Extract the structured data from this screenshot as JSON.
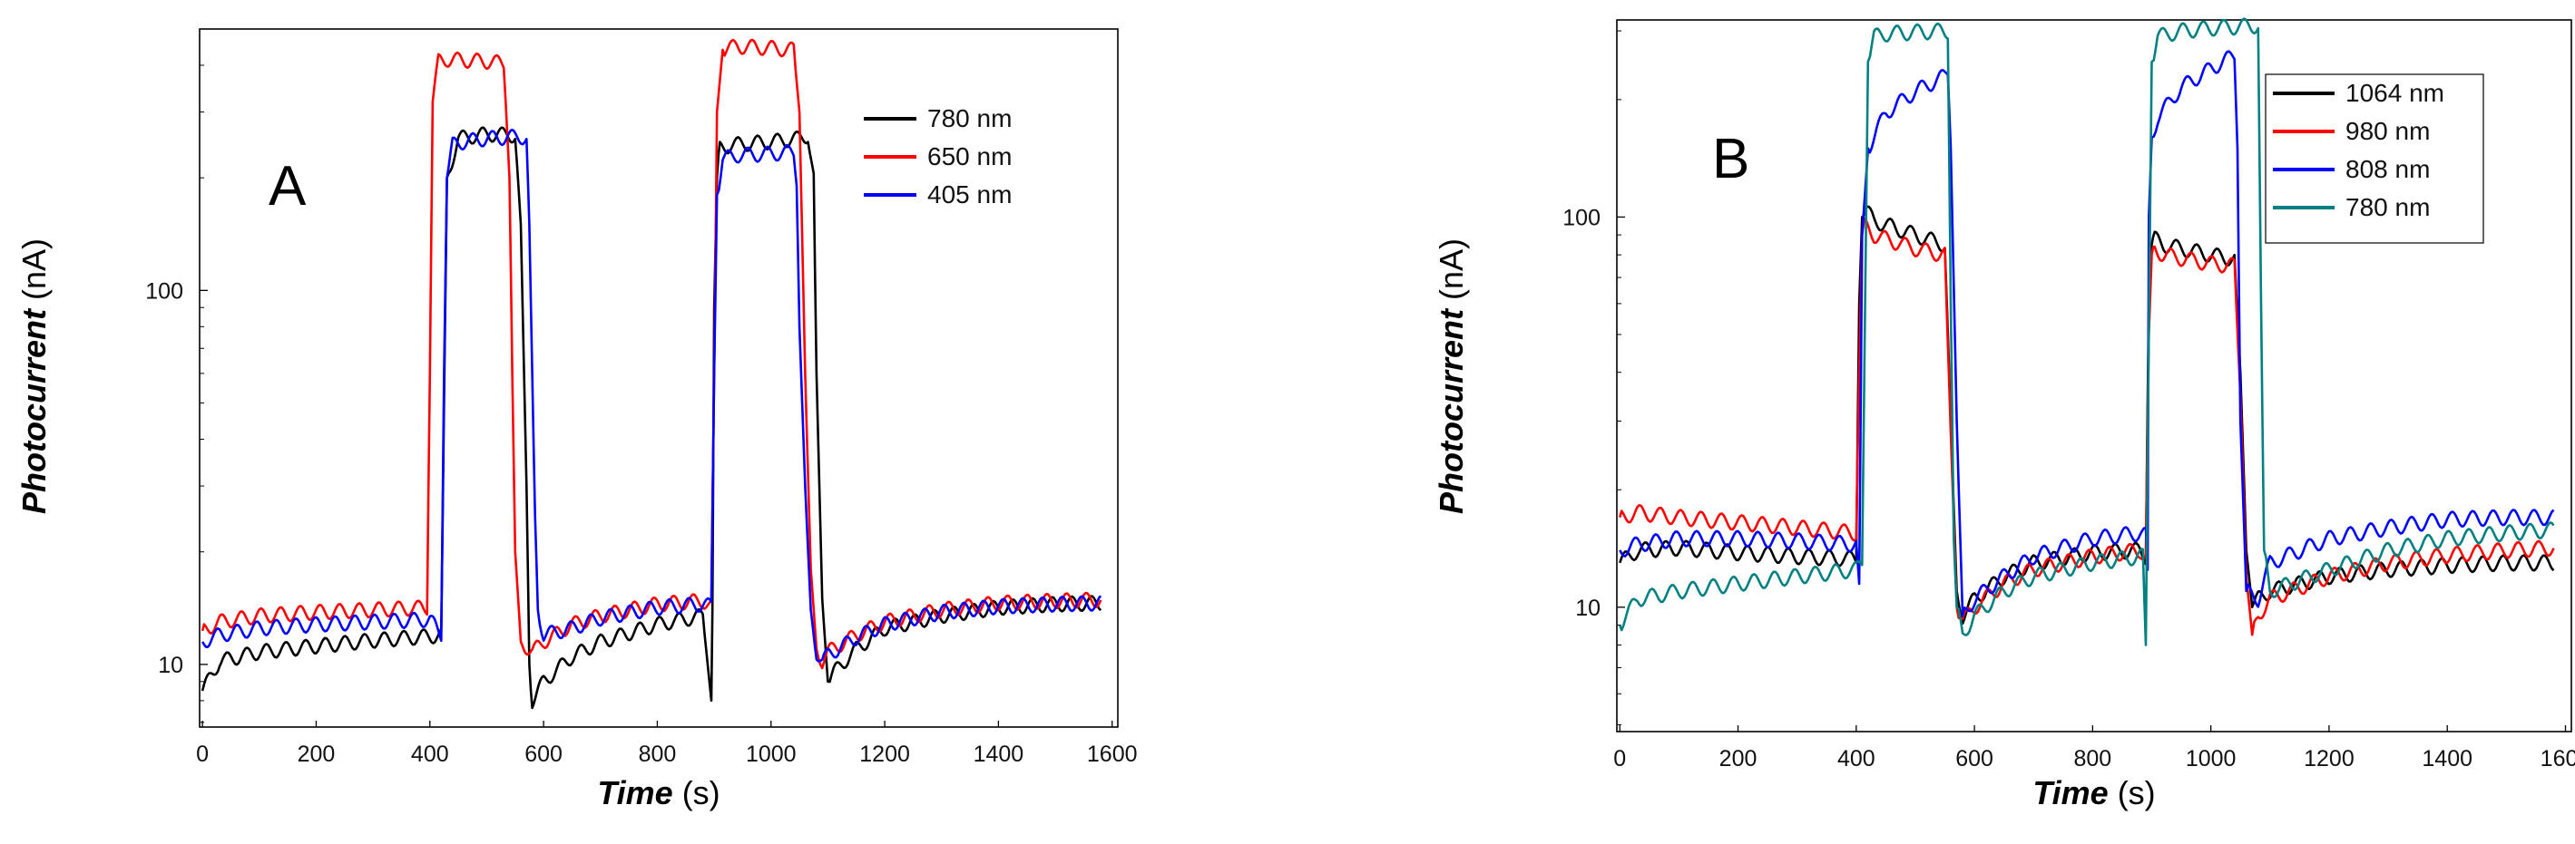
{
  "chart_data": [
    {
      "type": "line",
      "panel_label": "A",
      "xlabel_main": "Time",
      "xlabel_unit": " (s)",
      "ylabel_main": "Photocurrent",
      "ylabel_unit": " (nA)",
      "yscale": "log",
      "xlim": [
        -5,
        1610
      ],
      "ylim": [
        6.8,
        500
      ],
      "xticks": [
        0,
        200,
        400,
        600,
        800,
        1000,
        1200,
        1400,
        1600
      ],
      "yticks": [
        10,
        100
      ],
      "legend_position": "top-right",
      "series": [
        {
          "name": "780 nm",
          "color": "#000000",
          "x": [
            0,
            30,
            100,
            200,
            300,
            400,
            420,
            425,
            430,
            450,
            500,
            550,
            560,
            570,
            575,
            580,
            600,
            650,
            700,
            800,
            880,
            895,
            897,
            900,
            905,
            910,
            930,
            1000,
            1050,
            1065,
            1075,
            1080,
            1090,
            1100,
            1110,
            1150,
            1200,
            1300,
            1400,
            1500,
            1580
          ],
          "y": [
            8.5,
            10.2,
            10.8,
            11.2,
            11.6,
            11.9,
            12,
            50,
            200,
            255,
            262,
            260,
            150,
            30,
            10,
            8,
            9,
            10.5,
            11.5,
            12.8,
            13.5,
            8,
            14,
            90,
            200,
            240,
            245,
            250,
            255,
            260,
            200,
            60,
            15,
            9,
            9.5,
            11,
            12.5,
            13.5,
            14.2,
            14.5,
            14.6
          ]
        },
        {
          "name": "650 nm",
          "color": "#ff0000",
          "x": [
            0,
            30,
            100,
            200,
            300,
            395,
            400,
            405,
            415,
            430,
            500,
            530,
            540,
            545,
            550,
            560,
            580,
            600,
            650,
            700,
            800,
            880,
            895,
            900,
            905,
            915,
            940,
            1000,
            1040,
            1050,
            1060,
            1070,
            1080,
            1090,
            1100,
            1150,
            1200,
            1300,
            1400,
            1500,
            1580
          ],
          "y": [
            12.3,
            13,
            13.5,
            13.8,
            14,
            14.2,
            60,
            320,
            410,
            415,
            410,
            405,
            200,
            60,
            20,
            11.5,
            10.8,
            11.5,
            12.8,
            13.5,
            14.5,
            14.8,
            14.2,
            60,
            300,
            440,
            450,
            445,
            440,
            300,
            60,
            18,
            11,
            10.2,
            10.8,
            12,
            13,
            14,
            14.6,
            14.8,
            14.9
          ]
        },
        {
          "name": "405 nm",
          "color": "#0000ff",
          "x": [
            0,
            30,
            100,
            200,
            300,
            400,
            420,
            425,
            430,
            440,
            460,
            500,
            560,
            570,
            575,
            580,
            585,
            590,
            600,
            650,
            700,
            800,
            880,
            895,
            900,
            905,
            915,
            940,
            1000,
            1040,
            1045,
            1050,
            1060,
            1070,
            1080,
            1090,
            1100,
            1150,
            1200,
            1300,
            1400,
            1500,
            1580
          ],
          "y": [
            11.5,
            12,
            12.5,
            12.8,
            13,
            13.2,
            12,
            60,
            200,
            245,
            250,
            255,
            258,
            255,
            150,
            60,
            25,
            14,
            12,
            12.5,
            13.3,
            14.2,
            14.5,
            14.3,
            60,
            180,
            225,
            230,
            232,
            235,
            200,
            80,
            30,
            14,
            10.8,
            10.2,
            10.6,
            11.8,
            12.8,
            13.8,
            14.3,
            14.5,
            14.6
          ]
        }
      ]
    },
    {
      "type": "line",
      "panel_label": "B",
      "xlabel_main": "Time",
      "xlabel_unit": " (s)",
      "ylabel_main": "Photocurrent",
      "ylabel_unit": " (nA)",
      "yscale": "log",
      "xlim": [
        -5,
        1610
      ],
      "ylim": [
        4.8,
        320
      ],
      "xticks": [
        0,
        200,
        400,
        600,
        800,
        1000,
        1200,
        1400,
        1600
      ],
      "yticks": [
        10,
        100
      ],
      "legend_position": "top-right",
      "series": [
        {
          "name": "1064 nm",
          "color": "#000000",
          "x": [
            0,
            30,
            100,
            200,
            300,
            400,
            405,
            410,
            415,
            430,
            500,
            550,
            560,
            570,
            580,
            600,
            650,
            700,
            800,
            880,
            890,
            895,
            900,
            905,
            920,
            1000,
            1040,
            1050,
            1060,
            1070,
            1080,
            1100,
            1200,
            1300,
            1400,
            1500,
            1580
          ],
          "y": [
            13,
            14,
            14.2,
            13.8,
            13.5,
            13.3,
            60,
            100,
            105,
            98,
            90,
            85,
            30,
            11,
            9.5,
            10.5,
            12,
            13,
            13.8,
            14,
            13.5,
            60,
            85,
            88,
            85,
            80,
            78,
            40,
            14,
            10,
            10.5,
            11,
            12,
            12.5,
            12.8,
            13,
            13
          ]
        },
        {
          "name": "980 nm",
          "color": "#ff0000",
          "x": [
            0,
            30,
            100,
            200,
            300,
            400,
            405,
            410,
            415,
            430,
            500,
            550,
            560,
            570,
            580,
            600,
            650,
            700,
            800,
            880,
            890,
            895,
            900,
            905,
            920,
            1000,
            1040,
            1050,
            1060,
            1070,
            1080,
            1100,
            1200,
            1300,
            1400,
            1500,
            1580
          ],
          "y": [
            17,
            17.5,
            17,
            16.5,
            16,
            15.5,
            40,
            90,
            95,
            90,
            83,
            80,
            28,
            10,
            9.2,
            10,
            11.5,
            12.5,
            13.5,
            14,
            13.5,
            50,
            80,
            83,
            80,
            76,
            75,
            35,
            12,
            8.5,
            9.5,
            10.5,
            12,
            13,
            13.6,
            14,
            14.2
          ]
        },
        {
          "name": "808 nm",
          "color": "#0000ff",
          "x": [
            0,
            30,
            100,
            200,
            300,
            400,
            405,
            410,
            420,
            450,
            500,
            550,
            555,
            560,
            570,
            580,
            600,
            650,
            700,
            800,
            880,
            890,
            893,
            895,
            900,
            910,
            950,
            1000,
            1030,
            1040,
            1045,
            1050,
            1060,
            1080,
            1100,
            1200,
            1300,
            1400,
            1500,
            1580
          ],
          "y": [
            14,
            14.5,
            15,
            15,
            14.8,
            14.5,
            11,
            90,
            150,
            185,
            210,
            230,
            235,
            150,
            30,
            9.5,
            10.5,
            12,
            13.5,
            15,
            15.5,
            15.3,
            12,
            100,
            160,
            180,
            215,
            240,
            255,
            260,
            150,
            30,
            11,
            10.5,
            13,
            15,
            16,
            16.8,
            17,
            17
          ]
        },
        {
          "name": "780 nm",
          "color": "#008080",
          "x": [
            0,
            30,
            100,
            200,
            300,
            400,
            410,
            415,
            420,
            430,
            450,
            500,
            550,
            555,
            560,
            565,
            570,
            580,
            600,
            650,
            700,
            800,
            880,
            885,
            890,
            895,
            900,
            910,
            950,
            1000,
            1080,
            1085,
            1090,
            1100,
            1200,
            1300,
            1400,
            1500,
            1580
          ],
          "y": [
            9,
            10.5,
            11,
            11.5,
            12,
            12.5,
            13,
            60,
            250,
            290,
            295,
            298,
            300,
            300,
            60,
            15,
            10,
            8.5,
            9.5,
            11,
            12,
            13,
            13.5,
            13.5,
            8,
            50,
            250,
            290,
            300,
            305,
            310,
            60,
            14,
            11,
            12.5,
            14,
            15,
            15.5,
            15.8
          ]
        }
      ]
    }
  ]
}
